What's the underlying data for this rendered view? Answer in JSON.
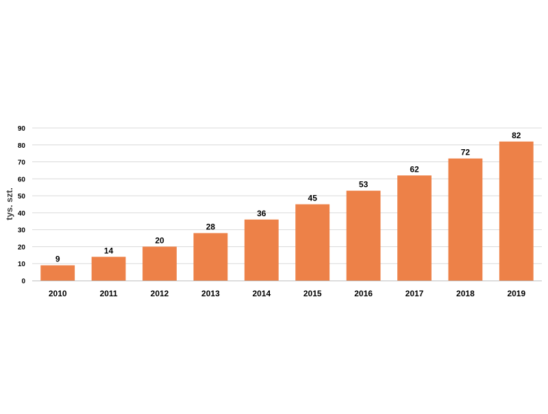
{
  "chart_data": {
    "type": "bar",
    "title": "",
    "xlabel": "",
    "ylabel": "tys. szt.",
    "categories": [
      "2010",
      "2011",
      "2012",
      "2013",
      "2014",
      "2015",
      "2016",
      "2017",
      "2018",
      "2019"
    ],
    "values": [
      9,
      14,
      20,
      28,
      36,
      45,
      53,
      62,
      72,
      82
    ],
    "ylim": [
      0,
      90
    ],
    "yticks": [
      0,
      10,
      20,
      30,
      40,
      50,
      60,
      70,
      80,
      90
    ],
    "grid": true,
    "legend": "none",
    "data_labels": true,
    "colors": {
      "bar": "#ED8148",
      "grid": "#D9D9D9",
      "axis": "#BFBFBF",
      "text": "#000000"
    }
  }
}
